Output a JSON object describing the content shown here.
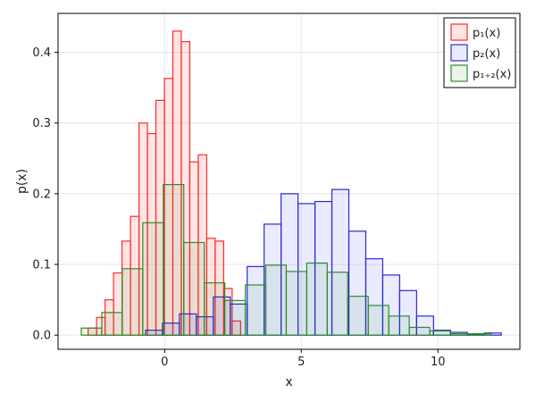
{
  "chart_data": {
    "type": "bar",
    "xlabel": "x",
    "ylabel": "p(x)",
    "xlim": [
      -3.9,
      13.0
    ],
    "ylim": [
      -0.02,
      0.455
    ],
    "x_ticks": [
      0,
      5,
      10
    ],
    "x_tick_labels": [
      "0",
      "5",
      "10"
    ],
    "y_ticks": [
      0.0,
      0.1,
      0.2,
      0.3,
      0.4
    ],
    "y_tick_labels": [
      "0.0",
      "0.1",
      "0.2",
      "0.3",
      "0.4"
    ],
    "grid": true,
    "legend_position": "top-right",
    "series": [
      {
        "name": "p₁(x)",
        "stroke": "#ff2a2a",
        "fill": "rgba(255,0,0,0.10)",
        "bin_width": 0.31,
        "bins": [
          {
            "x0": -2.8,
            "y": 0.01
          },
          {
            "x0": -2.49,
            "y": 0.025
          },
          {
            "x0": -2.18,
            "y": 0.05
          },
          {
            "x0": -1.87,
            "y": 0.088
          },
          {
            "x0": -1.56,
            "y": 0.133
          },
          {
            "x0": -1.25,
            "y": 0.168
          },
          {
            "x0": -0.94,
            "y": 0.3
          },
          {
            "x0": -0.63,
            "y": 0.285
          },
          {
            "x0": -0.32,
            "y": 0.332
          },
          {
            "x0": -0.01,
            "y": 0.363
          },
          {
            "x0": 0.3,
            "y": 0.43
          },
          {
            "x0": 0.61,
            "y": 0.415
          },
          {
            "x0": 0.92,
            "y": 0.245
          },
          {
            "x0": 1.23,
            "y": 0.255
          },
          {
            "x0": 1.54,
            "y": 0.137
          },
          {
            "x0": 1.85,
            "y": 0.133
          },
          {
            "x0": 2.16,
            "y": 0.066
          },
          {
            "x0": 2.47,
            "y": 0.02
          }
        ]
      },
      {
        "name": "p₂(x)",
        "stroke": "#2b2bd0",
        "fill": "rgba(0,0,255,0.08)",
        "bin_width": 0.62,
        "bins": [
          {
            "x0": -0.7,
            "y": 0.007
          },
          {
            "x0": -0.08,
            "y": 0.017
          },
          {
            "x0": 0.54,
            "y": 0.03
          },
          {
            "x0": 1.16,
            "y": 0.026
          },
          {
            "x0": 1.78,
            "y": 0.054
          },
          {
            "x0": 2.4,
            "y": 0.044
          },
          {
            "x0": 3.02,
            "y": 0.097
          },
          {
            "x0": 3.64,
            "y": 0.157
          },
          {
            "x0": 4.26,
            "y": 0.2
          },
          {
            "x0": 4.88,
            "y": 0.186
          },
          {
            "x0": 5.5,
            "y": 0.189
          },
          {
            "x0": 6.12,
            "y": 0.206
          },
          {
            "x0": 6.74,
            "y": 0.147
          },
          {
            "x0": 7.36,
            "y": 0.108
          },
          {
            "x0": 7.98,
            "y": 0.085
          },
          {
            "x0": 8.6,
            "y": 0.063
          },
          {
            "x0": 9.22,
            "y": 0.027
          },
          {
            "x0": 9.84,
            "y": 0.007
          },
          {
            "x0": 10.46,
            "y": 0.004
          },
          {
            "x0": 11.08,
            "y": 0.001
          },
          {
            "x0": 11.7,
            "y": 0.003
          }
        ]
      },
      {
        "name": "p₁₊₂(x)",
        "stroke": "#2e8b2e",
        "fill": "rgba(0,128,0,0.08)",
        "bin_width": 0.75,
        "bins": [
          {
            "x0": -3.05,
            "y": 0.01
          },
          {
            "x0": -2.3,
            "y": 0.032
          },
          {
            "x0": -1.55,
            "y": 0.094
          },
          {
            "x0": -0.8,
            "y": 0.159
          },
          {
            "x0": -0.05,
            "y": 0.213
          },
          {
            "x0": 0.7,
            "y": 0.131
          },
          {
            "x0": 1.45,
            "y": 0.074
          },
          {
            "x0": 2.2,
            "y": 0.049
          },
          {
            "x0": 2.95,
            "y": 0.071
          },
          {
            "x0": 3.7,
            "y": 0.099
          },
          {
            "x0": 4.45,
            "y": 0.09
          },
          {
            "x0": 5.2,
            "y": 0.102
          },
          {
            "x0": 5.95,
            "y": 0.089
          },
          {
            "x0": 6.7,
            "y": 0.055
          },
          {
            "x0": 7.45,
            "y": 0.042
          },
          {
            "x0": 8.2,
            "y": 0.027
          },
          {
            "x0": 8.95,
            "y": 0.011
          },
          {
            "x0": 9.7,
            "y": 0.006
          },
          {
            "x0": 10.45,
            "y": 0.002
          },
          {
            "x0": 11.2,
            "y": 0.002
          }
        ]
      }
    ]
  }
}
